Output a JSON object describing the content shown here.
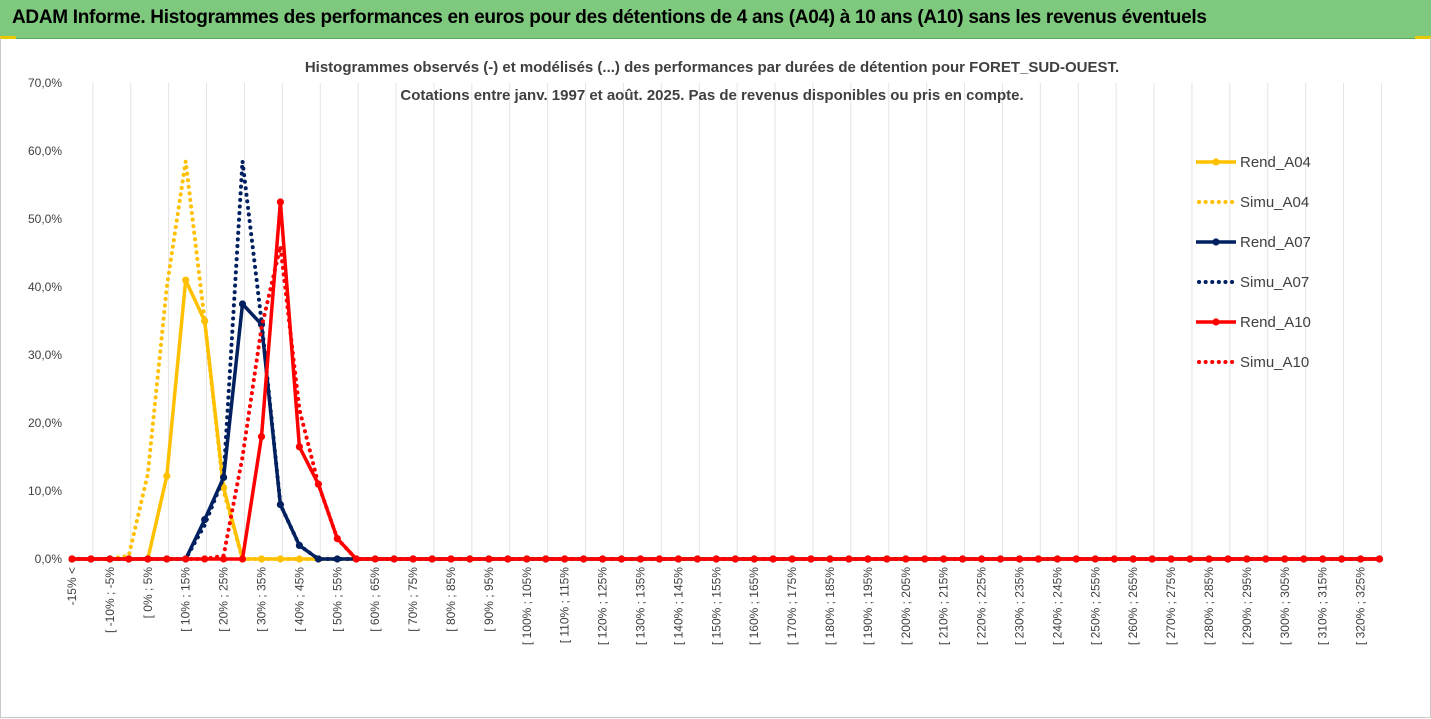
{
  "banner": {
    "title": "ADAM Informe. Histogrammes des performances en euros pour des détentions de 4 ans (A04) à 10 ans (A10) sans les revenus éventuels",
    "background": "#7ec97e"
  },
  "chart_data": {
    "type": "line",
    "title": "Histogrammes observés (-) et modélisés (...) des performances par durées de détention pour FORET_SUD-OUEST.",
    "subtitle": "Cotations entre janv. 1997 et août. 2025. Pas de revenus disponibles ou pris en compte.",
    "xlabel": "",
    "ylabel": "",
    "ylim": [
      0,
      70
    ],
    "y_ticks": [
      "0,0%",
      "10,0%",
      "20,0%",
      "30,0%",
      "40,0%",
      "50,0%",
      "60,0%",
      "70,0%"
    ],
    "grid": "vertical",
    "legend_position": "right",
    "category_labels": [
      "-15% <",
      "[ -10% ; -5%",
      "[ 0% ; 5%",
      "[ 10% ; 15%",
      "[ 20% ; 25%",
      "[ 30% ; 35%",
      "[ 40% ; 45%",
      "[ 50% ; 55%",
      "[ 60% ; 65%",
      "[ 70% ; 75%",
      "[ 80% ; 85%",
      "[ 90% ; 95%",
      "[ 100% ; 105%",
      "[ 110% ; 115%",
      "[ 120% ; 125%",
      "[ 130% ; 135%",
      "[ 140% ; 145%",
      "[ 150% ; 155%",
      "[ 160% ; 165%",
      "[ 170% ; 175%",
      "[ 180% ; 185%",
      "[ 190% ; 195%",
      "[ 200% ; 205%",
      "[ 210% ; 215%",
      "[ 220% ; 225%",
      "[ 230% ; 235%",
      "[ 240% ; 245%",
      "[ 250% ; 255%",
      "[ 260% ; 265%",
      "[ 270% ; 275%",
      "[ 280% ; 285%",
      "[ 290% ; 295%",
      "[ 300% ; 305%",
      "[ 310% ; 315%",
      "[ 320% ; 325%"
    ],
    "x": [
      -15,
      -10,
      -5,
      0,
      5,
      10,
      15,
      20,
      25,
      30,
      35,
      40,
      45,
      50,
      55,
      60,
      65,
      70,
      75,
      80,
      85,
      90,
      95,
      100,
      105,
      110,
      115,
      120,
      125,
      130,
      135,
      140,
      145,
      150,
      155,
      160,
      165,
      170,
      175,
      180,
      185,
      190,
      195,
      200,
      205,
      210,
      215,
      220,
      225,
      230,
      235,
      240,
      245,
      250,
      255,
      260,
      265,
      270,
      275,
      280,
      285,
      290,
      295,
      300,
      305,
      310,
      315,
      320,
      325,
      330
    ],
    "series": [
      {
        "name": "Rend_A04",
        "style": "solid",
        "color": "#ffc000",
        "values": [
          0,
          0,
          0,
          0,
          0,
          12.2,
          41,
          35,
          10.5,
          0,
          0,
          0,
          0,
          0,
          0,
          0,
          0,
          0,
          0,
          0,
          0,
          0,
          0,
          0,
          0,
          0,
          0,
          0,
          0,
          0,
          0,
          0,
          0,
          0,
          0,
          0,
          0,
          0,
          0,
          0,
          0,
          0,
          0,
          0,
          0,
          0,
          0,
          0,
          0,
          0,
          0,
          0,
          0,
          0,
          0,
          0,
          0,
          0,
          0,
          0,
          0,
          0,
          0,
          0,
          0,
          0,
          0,
          0,
          0,
          0
        ]
      },
      {
        "name": "Simu_A04",
        "style": "dotted",
        "color": "#ffc000",
        "values": [
          0,
          0,
          0,
          0.5,
          12.5,
          40,
          58.5,
          35,
          10,
          0,
          0,
          0,
          0,
          0,
          0,
          0,
          0,
          0,
          0,
          0,
          0,
          0,
          0,
          0,
          0,
          0,
          0,
          0,
          0,
          0,
          0,
          0,
          0,
          0,
          0,
          0,
          0,
          0,
          0,
          0,
          0,
          0,
          0,
          0,
          0,
          0,
          0,
          0,
          0,
          0,
          0,
          0,
          0,
          0,
          0,
          0,
          0,
          0,
          0,
          0,
          0,
          0,
          0,
          0,
          0,
          0,
          0,
          0,
          0,
          0
        ]
      },
      {
        "name": "Rend_A07",
        "style": "solid",
        "color": "#002060",
        "values": [
          0,
          0,
          0,
          0,
          0,
          0,
          0,
          5.8,
          12,
          37.5,
          34.5,
          8,
          2,
          0,
          0,
          0,
          0,
          0,
          0,
          0,
          0,
          0,
          0,
          0,
          0,
          0,
          0,
          0,
          0,
          0,
          0,
          0,
          0,
          0,
          0,
          0,
          0,
          0,
          0,
          0,
          0,
          0,
          0,
          0,
          0,
          0,
          0,
          0,
          0,
          0,
          0,
          0,
          0,
          0,
          0,
          0,
          0,
          0,
          0,
          0,
          0,
          0,
          0,
          0,
          0,
          0,
          0,
          0,
          0,
          0
        ]
      },
      {
        "name": "Simu_A07",
        "style": "dotted",
        "color": "#002060",
        "values": [
          0,
          0,
          0,
          0,
          0,
          0,
          0,
          5,
          12,
          58.5,
          35,
          8,
          2,
          0,
          0,
          0,
          0,
          0,
          0,
          0,
          0,
          0,
          0,
          0,
          0,
          0,
          0,
          0,
          0,
          0,
          0,
          0,
          0,
          0,
          0,
          0,
          0,
          0,
          0,
          0,
          0,
          0,
          0,
          0,
          0,
          0,
          0,
          0,
          0,
          0,
          0,
          0,
          0,
          0,
          0,
          0,
          0,
          0,
          0,
          0,
          0,
          0,
          0,
          0,
          0,
          0,
          0,
          0,
          0,
          0
        ]
      },
      {
        "name": "Rend_A10",
        "style": "solid",
        "color": "#ff0000",
        "values": [
          0,
          0,
          0,
          0,
          0,
          0,
          0,
          0,
          0,
          0,
          18,
          52.5,
          16.5,
          11,
          3,
          0,
          0,
          0,
          0,
          0,
          0,
          0,
          0,
          0,
          0,
          0,
          0,
          0,
          0,
          0,
          0,
          0,
          0,
          0,
          0,
          0,
          0,
          0,
          0,
          0,
          0,
          0,
          0,
          0,
          0,
          0,
          0,
          0,
          0,
          0,
          0,
          0,
          0,
          0,
          0,
          0,
          0,
          0,
          0,
          0,
          0,
          0,
          0,
          0,
          0,
          0,
          0,
          0,
          0,
          0
        ]
      },
      {
        "name": "Simu_A10",
        "style": "dotted",
        "color": "#ff0000",
        "values": [
          0,
          0,
          0,
          0,
          0,
          0,
          0,
          0,
          0.5,
          15,
          34,
          46,
          22,
          11,
          3,
          0,
          0,
          0,
          0,
          0,
          0,
          0,
          0,
          0,
          0,
          0,
          0,
          0,
          0,
          0,
          0,
          0,
          0,
          0,
          0,
          0,
          0,
          0,
          0,
          0,
          0,
          0,
          0,
          0,
          0,
          0,
          0,
          0,
          0,
          0,
          0,
          0,
          0,
          0,
          0,
          0,
          0,
          0,
          0,
          0,
          0,
          0,
          0,
          0,
          0,
          0,
          0,
          0,
          0,
          0
        ]
      }
    ]
  }
}
